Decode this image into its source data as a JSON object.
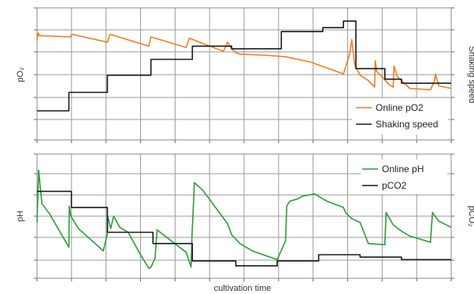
{
  "chart_data": [
    {
      "type": "line",
      "ylabel_left": "pO₂",
      "ylabel_right": "Shaking speed",
      "xlabel": "",
      "xlim": [
        0,
        100
      ],
      "ylim": [
        0,
        100
      ],
      "grid": true,
      "legend": {
        "placement": "bottom-right"
      },
      "colors": {
        "pO2": "#f07e26",
        "shaking": "#1a1a1a"
      },
      "series": [
        {
          "name": "Online pO2",
          "x": [
            0,
            0.3,
            0.6,
            8,
            8.5,
            17,
            17.6,
            27,
            27.5,
            36,
            36.8,
            45,
            46,
            47,
            48,
            49,
            56,
            60,
            66,
            74,
            75.5,
            76,
            76.7,
            78,
            80,
            81.5,
            81.7,
            82,
            85,
            86,
            86.2,
            87,
            90,
            95,
            96,
            96.2,
            97,
            100
          ],
          "y": [
            75,
            81,
            79,
            78,
            80,
            74,
            80,
            71,
            78,
            70,
            77,
            67,
            74,
            69,
            66,
            65,
            64,
            63,
            59,
            50,
            65,
            76,
            57,
            49,
            45,
            40,
            60,
            52,
            42,
            40,
            56,
            48,
            39,
            38,
            45,
            50,
            41,
            39
          ]
        },
        {
          "name": "Shaking speed",
          "x": [
            0,
            7.7,
            7.7,
            17,
            17,
            27.5,
            27.5,
            37.5,
            37.5,
            47,
            47,
            59,
            59,
            69,
            69,
            69,
            74,
            74,
            77,
            77,
            84,
            84,
            88,
            88,
            100
          ],
          "y": [
            22,
            22,
            36,
            36,
            49,
            49,
            61,
            61,
            71,
            71,
            69,
            69,
            82,
            82,
            82,
            85,
            85,
            90,
            90,
            54,
            54,
            46,
            46,
            43,
            43
          ]
        }
      ]
    },
    {
      "type": "line",
      "ylabel_left": "pH",
      "ylabel_right": "pCO₂",
      "xlabel": "cultivation time",
      "xlim": [
        0,
        100
      ],
      "ylim": [
        0,
        100
      ],
      "grid": true,
      "legend": {
        "placement": "top-right"
      },
      "colors": {
        "pH": "#2f9a3a",
        "pco2": "#1a1a1a"
      },
      "series": [
        {
          "name": "Online pH",
          "x": [
            0,
            0.4,
            0.8,
            1.2,
            3,
            7.7,
            7.8,
            8.2,
            10,
            16,
            17,
            17.1,
            17.8,
            18.5,
            20,
            22,
            25,
            27,
            27.5,
            28.5,
            29,
            34,
            36,
            37.2,
            37.4,
            38,
            40,
            46,
            47,
            49,
            52,
            58,
            60,
            60.3,
            61,
            63,
            64,
            67,
            70,
            74,
            74.5,
            76,
            78,
            80,
            84,
            84.3,
            86,
            88,
            90,
            93,
            95,
            95.5,
            97,
            100
          ],
          "y": [
            45,
            87,
            73,
            60,
            52,
            25,
            58,
            50,
            40,
            22,
            36,
            50,
            40,
            50,
            41,
            37,
            19,
            8,
            9,
            16,
            39,
            26,
            21,
            9,
            32,
            77,
            71,
            44,
            35,
            28,
            22,
            15,
            30,
            58,
            62,
            64,
            66,
            68,
            62,
            57,
            53,
            48,
            45,
            28,
            27,
            53,
            43,
            38,
            34,
            31,
            29,
            53,
            46,
            41
          ]
        },
        {
          "name": "pCO2",
          "x": [
            0,
            8.3,
            8.3,
            17,
            17,
            28,
            28,
            37.5,
            37.5,
            48,
            48,
            58,
            58,
            68,
            68,
            78,
            78,
            88,
            88,
            100
          ],
          "y": [
            70,
            70,
            57,
            57,
            37,
            37,
            28,
            28,
            14,
            14,
            10,
            10,
            14,
            14,
            19,
            19,
            17,
            17,
            15,
            15
          ]
        }
      ]
    }
  ]
}
